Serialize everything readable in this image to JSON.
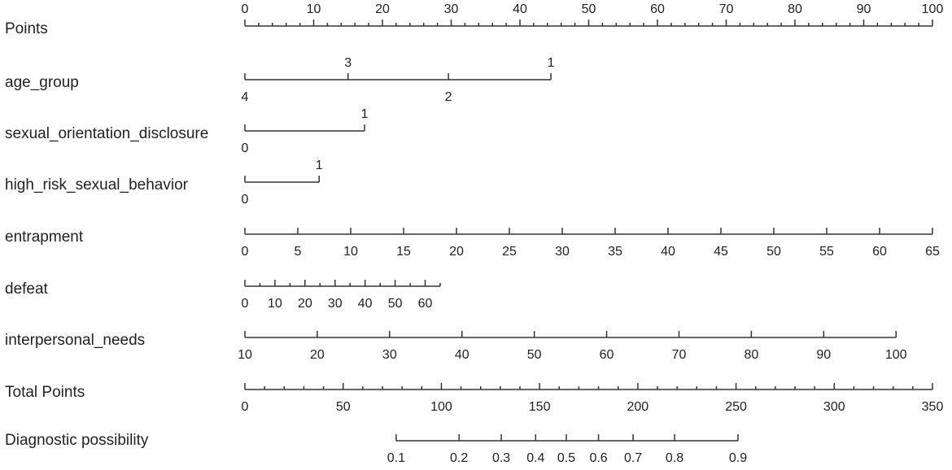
{
  "chart_data": {
    "type": "nomogram",
    "points_axis": {
      "label": "Points",
      "range": [
        0,
        100
      ],
      "ticks": [
        0,
        10,
        20,
        30,
        40,
        50,
        60,
        70,
        80,
        90,
        100
      ],
      "minor_ticks": [
        2,
        4,
        6,
        8,
        12,
        14,
        16,
        18,
        22,
        24,
        26,
        28,
        32,
        34,
        36,
        38,
        42,
        44,
        46,
        48,
        52,
        54,
        56,
        58,
        62,
        64,
        66,
        68,
        72,
        74,
        76,
        78,
        82,
        84,
        86,
        88,
        92,
        94,
        96,
        98
      ]
    },
    "variables": [
      {
        "label": "age_group",
        "kind": "categorical",
        "ticks": [
          4,
          3,
          2,
          1
        ],
        "points": [
          0,
          15,
          29.6,
          44.5
        ]
      },
      {
        "label": "sexual_orientation_disclosure",
        "kind": "categorical",
        "ticks": [
          0,
          1
        ],
        "points": [
          0,
          17.4
        ]
      },
      {
        "label": "high_risk_sexual_behavior",
        "kind": "categorical",
        "ticks": [
          0,
          1
        ],
        "points": [
          0,
          10.8
        ]
      },
      {
        "label": "entrapment",
        "kind": "continuous",
        "range": [
          0,
          65
        ],
        "points_range": [
          0,
          100
        ],
        "ticks": [
          0,
          5,
          10,
          15,
          20,
          25,
          30,
          35,
          40,
          45,
          50,
          55,
          60,
          65
        ]
      },
      {
        "label": "defeat",
        "kind": "continuous",
        "range": [
          0,
          65
        ],
        "points_range": [
          0,
          28.4
        ],
        "ticks": [
          0,
          10,
          20,
          30,
          40,
          50,
          60
        ],
        "minor_ticks": [
          5,
          15,
          25,
          35,
          45,
          55,
          65
        ]
      },
      {
        "label": "interpersonal_needs",
        "kind": "continuous",
        "range": [
          10,
          100
        ],
        "points_range": [
          0,
          94.7
        ],
        "ticks": [
          10,
          20,
          30,
          40,
          50,
          60,
          70,
          80,
          90,
          100
        ]
      }
    ],
    "total_axis": {
      "label": "Total Points",
      "range": [
        0,
        350
      ],
      "ticks": [
        0,
        50,
        100,
        150,
        200,
        250,
        300,
        350
      ],
      "minor_ticks": [
        10,
        20,
        30,
        40,
        60,
        70,
        80,
        90,
        110,
        120,
        130,
        140,
        160,
        170,
        180,
        190,
        210,
        220,
        230,
        240,
        260,
        270,
        280,
        290,
        310,
        320,
        330,
        340
      ]
    },
    "probability_axis": {
      "label": "Diagnostic possibility",
      "ticks": [
        0.1,
        0.2,
        0.3,
        0.4,
        0.5,
        0.6,
        0.7,
        0.8,
        0.9
      ],
      "total_points": [
        77,
        109,
        130.5,
        148,
        163.6,
        180,
        197.6,
        218.7,
        251
      ]
    }
  }
}
